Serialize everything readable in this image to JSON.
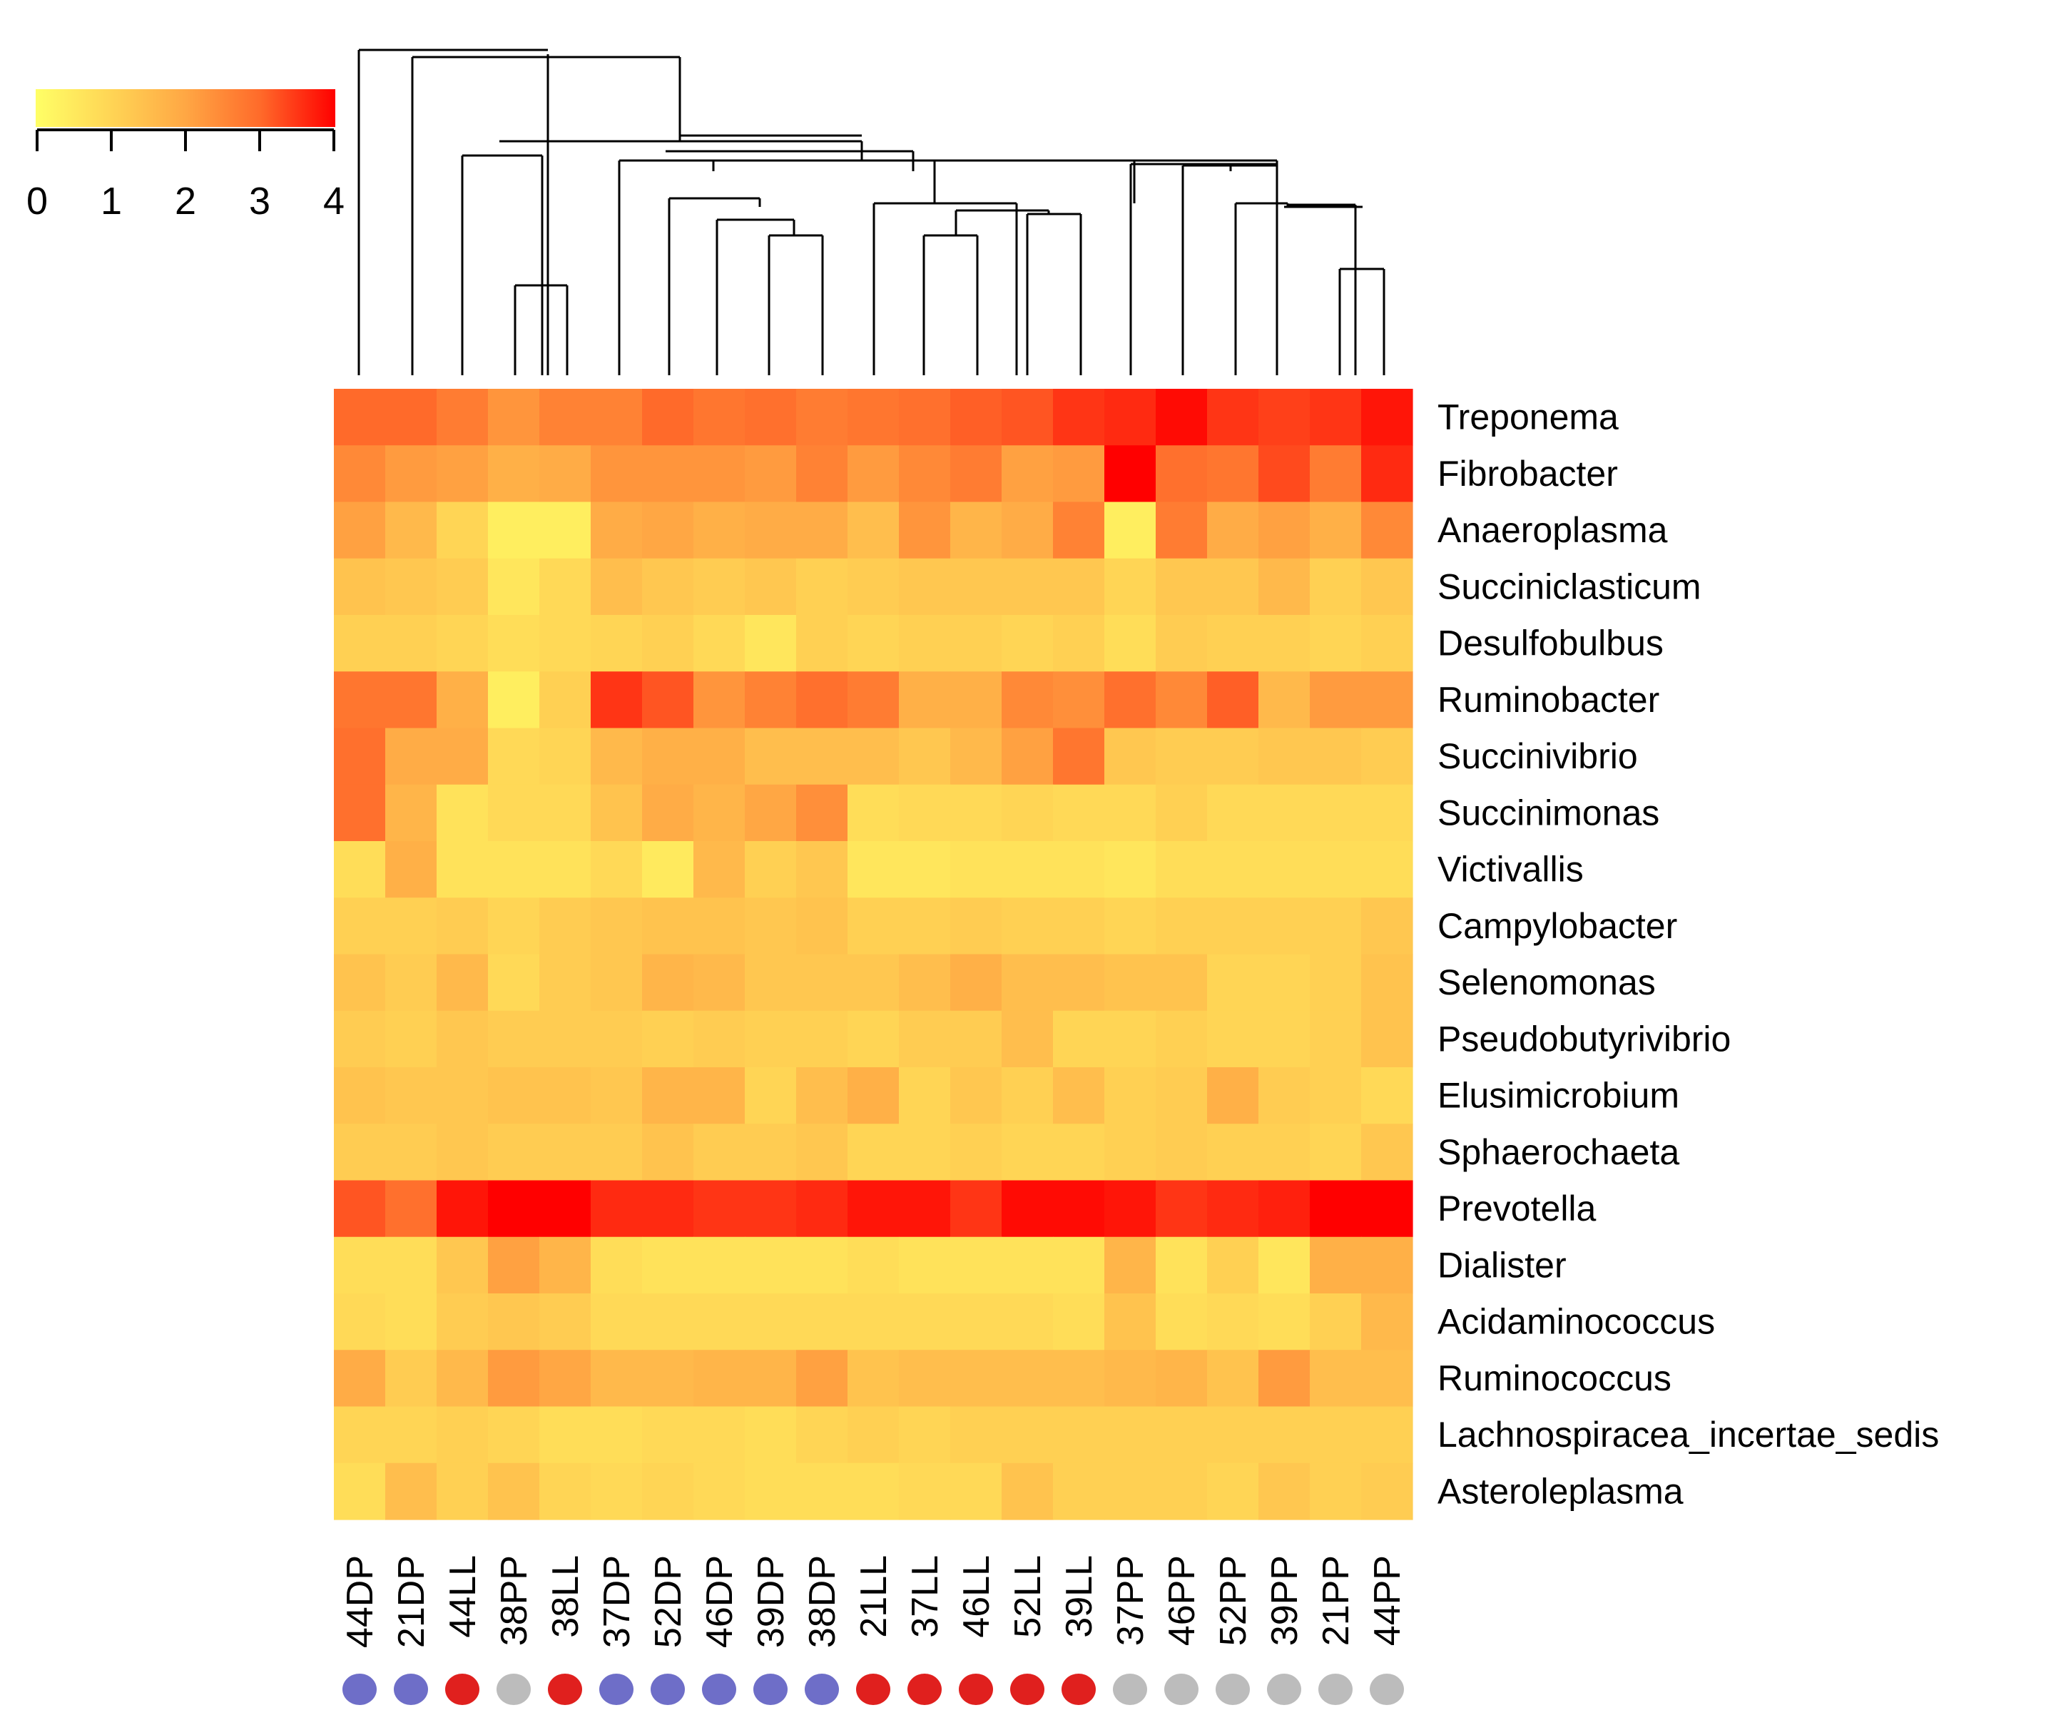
{
  "chart_data": {
    "type": "heatmap",
    "title": "",
    "color_scale": {
      "min": 0,
      "max": 4,
      "ticks": [
        0,
        1,
        2,
        3,
        4
      ],
      "tick_labels": [
        "0",
        "1",
        "2",
        "3",
        "4"
      ],
      "stops": [
        {
          "value": 0,
          "color": "#ffff66"
        },
        {
          "value": 1,
          "color": "#ffd555"
        },
        {
          "value": 2,
          "color": "#ffa744"
        },
        {
          "value": 3,
          "color": "#ff6a2a"
        },
        {
          "value": 4,
          "color": "#ff0000"
        }
      ]
    },
    "columns": [
      "44DP",
      "21DP",
      "44LL",
      "38PP",
      "38LL",
      "37DP",
      "52DP",
      "46DP",
      "39DP",
      "38DP",
      "21LL",
      "37LL",
      "46LL",
      "52LL",
      "39LL",
      "37PP",
      "46PP",
      "52PP",
      "39PP",
      "21PP",
      "44PP"
    ],
    "column_groups": [
      "DP",
      "DP",
      "LL",
      "PP",
      "LL",
      "DP",
      "DP",
      "DP",
      "DP",
      "DP",
      "LL",
      "LL",
      "LL",
      "LL",
      "LL",
      "PP",
      "PP",
      "PP",
      "PP",
      "PP",
      "PP"
    ],
    "group_colors": {
      "DP": "#6e6ec8",
      "LL": "#e0201e",
      "PP": "#bcbcbc"
    },
    "rows": [
      "Treponema",
      "Fibrobacter",
      "Anaeroplasma",
      "Succiniclasticum",
      "Desulfobulbus",
      "Ruminobacter",
      "Succinivibrio",
      "Succinimonas",
      "Victivallis",
      "Campylobacter",
      "Selenomonas",
      "Pseudobutyrivibrio",
      "Elusimicrobium",
      "Sphaerochaeta",
      "Prevotella",
      "Dialister",
      "Acidaminococcus",
      "Ruminococcus",
      "Lachnospiracea_incertae_sedis",
      "Asteroleplasma"
    ],
    "values": [
      [
        3.0,
        3.0,
        2.7,
        2.3,
        2.6,
        2.6,
        3.0,
        2.8,
        2.9,
        2.7,
        2.8,
        2.9,
        3.1,
        3.2,
        3.5,
        3.6,
        3.9,
        3.5,
        3.4,
        3.5,
        3.8
      ],
      [
        2.5,
        2.2,
        2.1,
        1.8,
        1.9,
        2.3,
        2.3,
        2.3,
        2.2,
        2.6,
        2.2,
        2.5,
        2.7,
        2.1,
        2.2,
        4.0,
        2.9,
        2.8,
        3.3,
        2.7,
        3.6
      ],
      [
        2.1,
        1.6,
        1.0,
        0.4,
        0.4,
        1.9,
        2.0,
        1.8,
        1.9,
        1.9,
        1.5,
        2.3,
        1.7,
        1.9,
        2.6,
        0.4,
        2.7,
        1.9,
        2.1,
        1.8,
        2.5
      ],
      [
        1.4,
        1.3,
        1.2,
        0.6,
        0.9,
        1.5,
        1.3,
        1.2,
        1.3,
        1.1,
        1.2,
        1.3,
        1.3,
        1.3,
        1.3,
        1.0,
        1.3,
        1.3,
        1.6,
        1.1,
        1.3
      ],
      [
        1.1,
        1.1,
        1.0,
        0.8,
        0.9,
        1.0,
        1.1,
        0.9,
        0.6,
        1.1,
        1.0,
        1.1,
        1.1,
        1.0,
        1.1,
        0.8,
        1.2,
        1.1,
        1.1,
        1.0,
        1.1
      ],
      [
        2.8,
        2.8,
        1.8,
        0.4,
        1.1,
        3.5,
        3.2,
        2.3,
        2.6,
        2.9,
        2.7,
        1.8,
        1.8,
        2.5,
        2.4,
        2.9,
        2.5,
        3.1,
        1.6,
        2.2,
        2.2
      ],
      [
        2.9,
        1.9,
        1.9,
        0.9,
        1.0,
        1.6,
        1.8,
        1.8,
        1.5,
        1.5,
        1.5,
        1.3,
        1.6,
        2.1,
        2.8,
        1.3,
        1.2,
        1.2,
        1.3,
        1.3,
        1.2
      ],
      [
        2.9,
        1.7,
        0.7,
        0.9,
        0.9,
        1.4,
        1.9,
        1.7,
        2.0,
        2.4,
        0.8,
        0.9,
        0.9,
        1.0,
        0.9,
        0.9,
        1.1,
        0.9,
        0.9,
        0.9,
        0.9
      ],
      [
        0.8,
        1.8,
        0.7,
        0.7,
        0.7,
        0.9,
        0.5,
        1.6,
        1.1,
        1.3,
        0.6,
        0.6,
        0.7,
        0.7,
        0.7,
        0.6,
        0.8,
        0.8,
        0.8,
        0.8,
        0.8
      ],
      [
        1.1,
        1.1,
        1.2,
        1.0,
        1.2,
        1.3,
        1.4,
        1.4,
        1.3,
        1.4,
        1.1,
        1.1,
        1.2,
        1.1,
        1.1,
        1.0,
        1.1,
        1.1,
        1.1,
        1.1,
        1.3
      ],
      [
        1.4,
        1.2,
        1.6,
        0.9,
        1.2,
        1.3,
        1.7,
        1.6,
        1.3,
        1.3,
        1.3,
        1.5,
        1.8,
        1.5,
        1.5,
        1.4,
        1.4,
        1.0,
        1.0,
        1.1,
        1.4
      ],
      [
        1.2,
        1.1,
        1.3,
        1.2,
        1.2,
        1.2,
        1.1,
        1.2,
        1.1,
        1.1,
        1.0,
        1.2,
        1.2,
        1.5,
        1.0,
        1.0,
        1.1,
        1.0,
        1.0,
        1.1,
        1.4
      ],
      [
        1.4,
        1.3,
        1.3,
        1.4,
        1.4,
        1.3,
        1.7,
        1.7,
        1.0,
        1.5,
        1.8,
        1.0,
        1.3,
        1.1,
        1.5,
        1.1,
        1.2,
        1.8,
        1.2,
        1.1,
        0.9
      ],
      [
        1.2,
        1.2,
        1.3,
        1.2,
        1.2,
        1.2,
        1.4,
        1.2,
        1.2,
        1.3,
        1.0,
        1.0,
        1.1,
        1.0,
        1.0,
        1.1,
        1.2,
        1.1,
        1.1,
        1.0,
        1.3
      ],
      [
        3.2,
        2.9,
        3.8,
        4.0,
        4.0,
        3.6,
        3.6,
        3.5,
        3.5,
        3.6,
        3.8,
        3.8,
        3.5,
        3.9,
        3.9,
        3.8,
        3.5,
        3.6,
        3.7,
        4.0,
        4.0
      ],
      [
        0.8,
        0.8,
        1.3,
        2.1,
        1.7,
        0.8,
        0.7,
        0.7,
        0.7,
        0.7,
        0.8,
        0.7,
        0.7,
        0.7,
        0.7,
        1.7,
        0.7,
        1.1,
        0.6,
        1.8,
        1.8
      ],
      [
        0.9,
        0.8,
        1.2,
        1.3,
        1.2,
        0.9,
        0.9,
        0.9,
        0.9,
        0.9,
        0.9,
        0.9,
        0.9,
        0.9,
        0.8,
        1.4,
        0.8,
        0.9,
        0.8,
        1.1,
        1.6
      ],
      [
        1.9,
        1.2,
        1.6,
        2.2,
        2.0,
        1.6,
        1.6,
        1.7,
        1.7,
        2.1,
        1.4,
        1.5,
        1.5,
        1.5,
        1.5,
        1.6,
        1.7,
        1.4,
        2.2,
        1.5,
        1.5
      ],
      [
        1.0,
        1.0,
        1.1,
        1.0,
        0.8,
        0.8,
        0.9,
        0.9,
        0.8,
        1.0,
        1.1,
        1.0,
        1.1,
        1.1,
        1.1,
        1.1,
        1.1,
        1.1,
        1.1,
        1.1,
        1.1
      ],
      [
        0.8,
        1.5,
        1.1,
        1.4,
        1.0,
        0.9,
        1.0,
        0.9,
        0.8,
        0.8,
        0.8,
        0.9,
        0.9,
        1.4,
        1.1,
        1.1,
        1.1,
        1.0,
        1.3,
        1.1,
        1.2
      ]
    ],
    "column_dendrogram_leaf_order": [
      "44DP",
      "21DP",
      "44LL",
      "38PP",
      "38LL",
      "37DP",
      "52DP",
      "46DP",
      "39DP",
      "38DP",
      "21LL",
      "37LL",
      "46LL",
      "52LL",
      "39LL",
      "37PP",
      "46PP",
      "52PP",
      "39PP",
      "21PP",
      "44PP"
    ],
    "xlabel": "",
    "ylabel": ""
  }
}
